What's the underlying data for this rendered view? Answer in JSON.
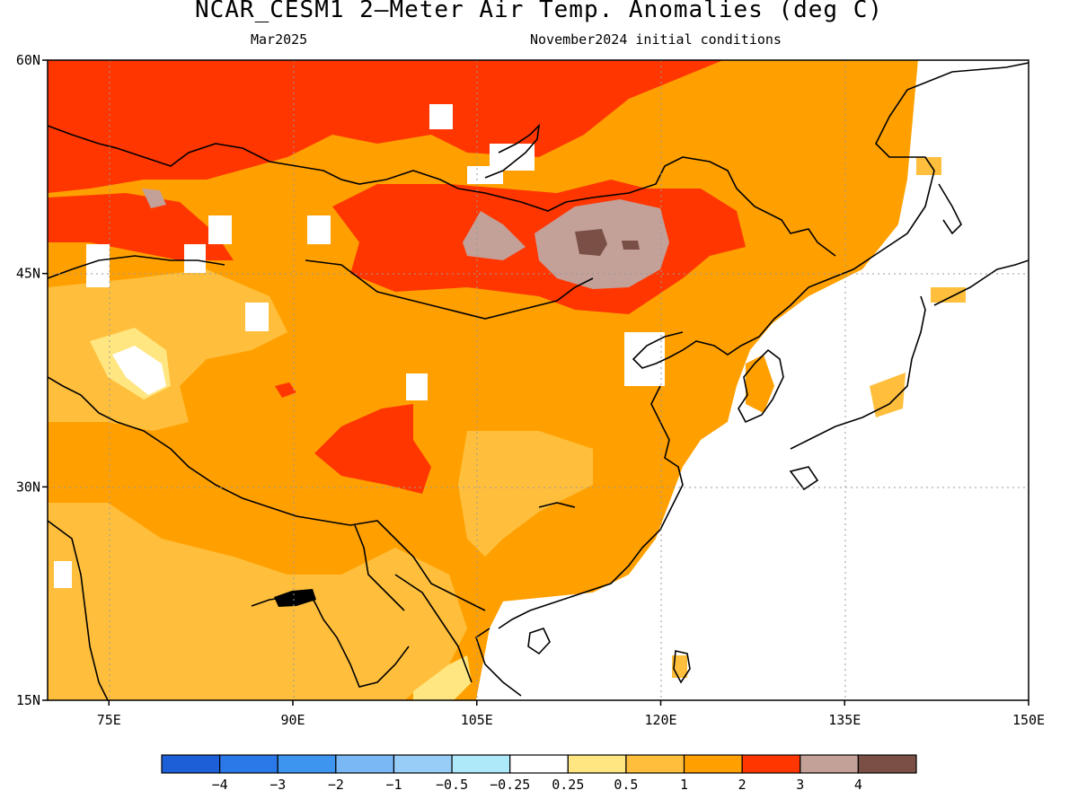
{
  "title": "NCAR_CESM1 2—Meter Air Temp. Anomalies (deg C)",
  "subtitle_left": "Mar2025",
  "subtitle_right": "November2024 initial conditions",
  "axes": {
    "lon_ticks": [
      "75E",
      "90E",
      "105E",
      "120E",
      "135E",
      "150E"
    ],
    "lat_ticks": [
      "60N",
      "45N",
      "30N",
      "15N"
    ],
    "lon_range": [
      70,
      150
    ],
    "lat_range": [
      15,
      60
    ],
    "grid": "dotted"
  },
  "colorbar": {
    "colors": [
      "#1c5fd6",
      "#2b78e8",
      "#3d95f0",
      "#79b8f5",
      "#98cdf7",
      "#aee9f9",
      "#ffffff",
      "#ffe680",
      "#ffbf3c",
      "#ffa000",
      "#ff3600",
      "#c3a098",
      "#7a4f45"
    ],
    "labels": [
      "−4",
      "−3",
      "−2",
      "−1",
      "−0.5",
      "−0.25",
      "0.25",
      "0.5",
      "1",
      "2",
      "3",
      "4"
    ]
  }
}
